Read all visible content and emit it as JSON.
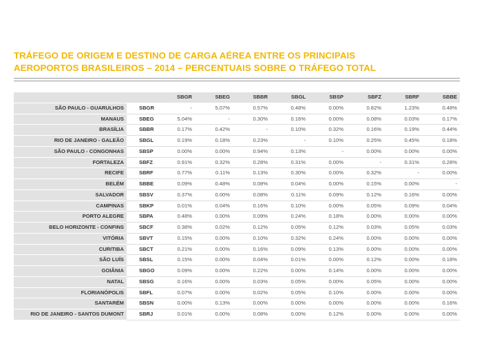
{
  "title_line1": "TRÁFEGO DE ORIGEM E DESTINO DE CARGA AÉREA ENTRE OS PRINCIPAIS",
  "title_line2": "AEROPORTOS BRASILEIROS – 2014 – PERCENTUAIS SOBRE O TRÁFEGO TOTAL",
  "columns": [
    "SBGR",
    "SBEG",
    "SBBR",
    "SBGL",
    "SBSP",
    "SBFZ",
    "SBRF",
    "SBBE"
  ],
  "rows": [
    {
      "city": "SÃO PAULO - GUARULHOS",
      "code": "SBGR",
      "values": [
        "-",
        "5.07%",
        "0.57%",
        "0.48%",
        "0.00%",
        "0.82%",
        "1.23%",
        "0.48%"
      ]
    },
    {
      "city": "MANAUS",
      "code": "SBEG",
      "values": [
        "5.04%",
        "-",
        "0.30%",
        "0.16%",
        "0.00%",
        "0.08%",
        "0.03%",
        "0.17%"
      ]
    },
    {
      "city": "BRASÍLIA",
      "code": "SBBR",
      "values": [
        "0.17%",
        "0.42%",
        "-",
        "0.10%",
        "0.32%",
        "0.16%",
        "0.19%",
        "0.44%"
      ]
    },
    {
      "city": "RIO DE JANEIRO - GALEÃO",
      "code": "SBGL",
      "values": [
        "0.19%",
        "0.18%",
        "0.23%",
        "-",
        "0.10%",
        "0.25%",
        "0.45%",
        "0.18%"
      ]
    },
    {
      "city": "SÃO PAULO - CONGONHAS",
      "code": "SBSP",
      "values": [
        "0.00%",
        "0.00%",
        "0.94%",
        "0.13%",
        "-",
        "0.00%",
        "0.00%",
        "0.00%"
      ]
    },
    {
      "city": "FORTALEZA",
      "code": "SBFZ",
      "values": [
        "0.91%",
        "0.32%",
        "0.28%",
        "0.31%",
        "0.00%",
        "-",
        "0.31%",
        "0.28%"
      ]
    },
    {
      "city": "RECIFE",
      "code": "SBRF",
      "values": [
        "0.77%",
        "0.11%",
        "0.13%",
        "0.30%",
        "0.00%",
        "0.32%",
        "-",
        "0.00%"
      ]
    },
    {
      "city": "BELÉM",
      "code": "SBBE",
      "values": [
        "0.09%",
        "0.48%",
        "0.08%",
        "0.04%",
        "0.00%",
        "0.15%",
        "0.00%",
        "-"
      ]
    },
    {
      "city": "SALVADOR",
      "code": "SBSV",
      "values": [
        "0.37%",
        "0.00%",
        "0.08%",
        "0.11%",
        "0.09%",
        "0.12%",
        "0.16%",
        "0.00%"
      ]
    },
    {
      "city": "CAMPINAS",
      "code": "SBKP",
      "values": [
        "0.01%",
        "0.04%",
        "0.16%",
        "0.10%",
        "0.00%",
        "0.05%",
        "0.09%",
        "0.04%"
      ]
    },
    {
      "city": "PORTO ALEGRE",
      "code": "SBPA",
      "values": [
        "0.48%",
        "0.00%",
        "0.09%",
        "0.24%",
        "0.18%",
        "0.00%",
        "0.00%",
        "0.00%"
      ]
    },
    {
      "city": "BELO HORIZONTE - CONFINS",
      "code": "SBCF",
      "values": [
        "0.38%",
        "0.02%",
        "0.12%",
        "0.05%",
        "0.12%",
        "0.03%",
        "0.05%",
        "0.03%"
      ]
    },
    {
      "city": "VITÓRIA",
      "code": "SBVT",
      "values": [
        "0.15%",
        "0.00%",
        "0.10%",
        "0.32%",
        "0.24%",
        "0.00%",
        "0.00%",
        "0.00%"
      ]
    },
    {
      "city": "CURITIBA",
      "code": "SBCT",
      "values": [
        "0.21%",
        "0.00%",
        "0.16%",
        "0.09%",
        "0.13%",
        "0.00%",
        "0.00%",
        "0.00%"
      ]
    },
    {
      "city": "SÃO LUÍS",
      "code": "SBSL",
      "values": [
        "0.15%",
        "0.00%",
        "0.04%",
        "0.01%",
        "0.00%",
        "0.12%",
        "0.00%",
        "0.18%"
      ]
    },
    {
      "city": "GOIÂNIA",
      "code": "SBGO",
      "values": [
        "0.09%",
        "0.00%",
        "0.22%",
        "0.00%",
        "0.14%",
        "0.00%",
        "0.00%",
        "0.00%"
      ]
    },
    {
      "city": "NATAL",
      "code": "SBSG",
      "values": [
        "0.16%",
        "0.00%",
        "0.03%",
        "0.05%",
        "0.00%",
        "0.05%",
        "0.00%",
        "0.00%"
      ]
    },
    {
      "city": "FLORIANÓPOLIS",
      "code": "SBFL",
      "values": [
        "0.07%",
        "0.00%",
        "0.02%",
        "0.05%",
        "0.10%",
        "0.00%",
        "0.00%",
        "0.00%"
      ]
    },
    {
      "city": "SANTARÉM",
      "code": "SBSN",
      "values": [
        "0.00%",
        "0.13%",
        "0.00%",
        "0.00%",
        "0.00%",
        "0.00%",
        "0.00%",
        "0.16%"
      ]
    },
    {
      "city": "RIO DE JANEIRO - SANTOS DUMONT",
      "code": "SBRJ",
      "values": [
        "0.01%",
        "0.00%",
        "0.08%",
        "0.00%",
        "0.12%",
        "0.00%",
        "0.00%",
        "0.00%"
      ]
    }
  ],
  "colors": {
    "title": "#f2b705",
    "header_bg": "#e2e2e2",
    "rule": "#9a9a9a"
  }
}
